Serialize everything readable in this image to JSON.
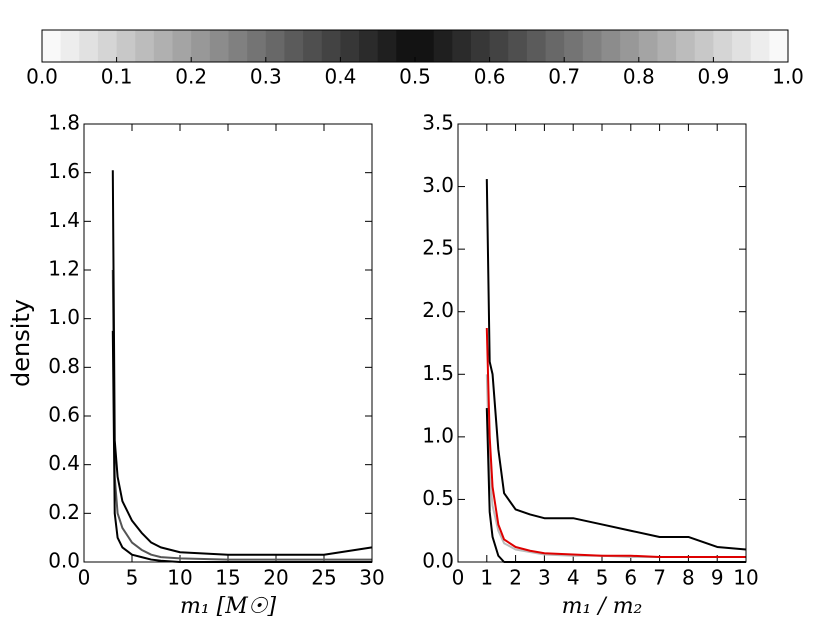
{
  "chart_data": [
    {
      "type": "colorbar",
      "xlim": [
        0,
        1
      ],
      "xticks": [
        {
          "value": 0,
          "label": "0.0"
        },
        0.1,
        0.2,
        0.3,
        0.4,
        0.5,
        0.6,
        0.7,
        0.8,
        0.9,
        {
          "value": 1,
          "label": "1.0"
        }
      ]
    },
    {
      "type": "line",
      "xlabel": "m₁ [M☉]",
      "ylabel": "density",
      "x": [
        3,
        3.2,
        3.5,
        4,
        5,
        6,
        7,
        8,
        10,
        15,
        20,
        25,
        30
      ],
      "series": [
        {
          "color": "#555555",
          "values": [
            1.2,
            0.35,
            0.2,
            0.14,
            0.08,
            0.05,
            0.03,
            0.02,
            0.015,
            0.01,
            0.01,
            0.01,
            0.01
          ]
        },
        {
          "color": "#000000",
          "values": [
            1.61,
            0.5,
            0.35,
            0.25,
            0.17,
            0.12,
            0.08,
            0.06,
            0.04,
            0.03,
            0.03,
            0.03,
            0.06
          ]
        },
        {
          "color": "#000000",
          "values": [
            0.95,
            0.2,
            0.1,
            0.06,
            0.03,
            0.02,
            0.01,
            0.005,
            0,
            0,
            0,
            0,
            0
          ]
        }
      ],
      "xlim": [
        0,
        30
      ],
      "xticks": [
        0,
        5,
        10,
        15,
        20,
        25,
        30
      ],
      "ylim": [
        0,
        1.8
      ],
      "yticks": [
        {
          "value": 0,
          "label": "0.0"
        },
        0.2,
        0.4,
        0.6,
        0.8,
        {
          "value": 1,
          "label": "1.0"
        },
        1.2,
        1.4,
        1.6,
        1.8
      ]
    },
    {
      "type": "line",
      "xlabel": "m₁ / m₂",
      "x": [
        1,
        1.1,
        1.2,
        1.4,
        1.6,
        2,
        2.5,
        3,
        4,
        5,
        6,
        7,
        8,
        9,
        10
      ],
      "series": [
        {
          "color": "#bbbbbb",
          "values": [
            1.5,
            0.7,
            0.45,
            0.25,
            0.15,
            0.1,
            0.08,
            0.06,
            0.05,
            0.05,
            0.04,
            0.04,
            0.04,
            0.04,
            0.04
          ]
        },
        {
          "color": "#000000",
          "values": [
            3.06,
            1.6,
            1.5,
            0.9,
            0.55,
            0.42,
            0.38,
            0.35,
            0.35,
            0.3,
            0.25,
            0.2,
            0.2,
            0.12,
            0.1
          ]
        },
        {
          "color": "#000000",
          "values": [
            1.23,
            0.4,
            0.2,
            0.05,
            0,
            0,
            0,
            0,
            0,
            0,
            0,
            0,
            0,
            0,
            0
          ]
        },
        {
          "color": "#dd0000",
          "values": [
            1.87,
            1.0,
            0.6,
            0.3,
            0.18,
            0.12,
            0.09,
            0.07,
            0.06,
            0.05,
            0.05,
            0.04,
            0.04,
            0.04,
            0.04
          ]
        }
      ],
      "xlim": [
        0,
        10
      ],
      "xticks": [
        0,
        1,
        2,
        3,
        4,
        5,
        6,
        7,
        8,
        9,
        10
      ],
      "ylim": [
        0,
        3.5
      ],
      "yticks": [
        {
          "value": 0,
          "label": "0.0"
        },
        0.5,
        {
          "value": 1,
          "label": "1.0"
        },
        1.5,
        {
          "value": 2,
          "label": "2.0"
        },
        2.5,
        {
          "value": 3,
          "label": "3.0"
        },
        3.5
      ]
    }
  ]
}
